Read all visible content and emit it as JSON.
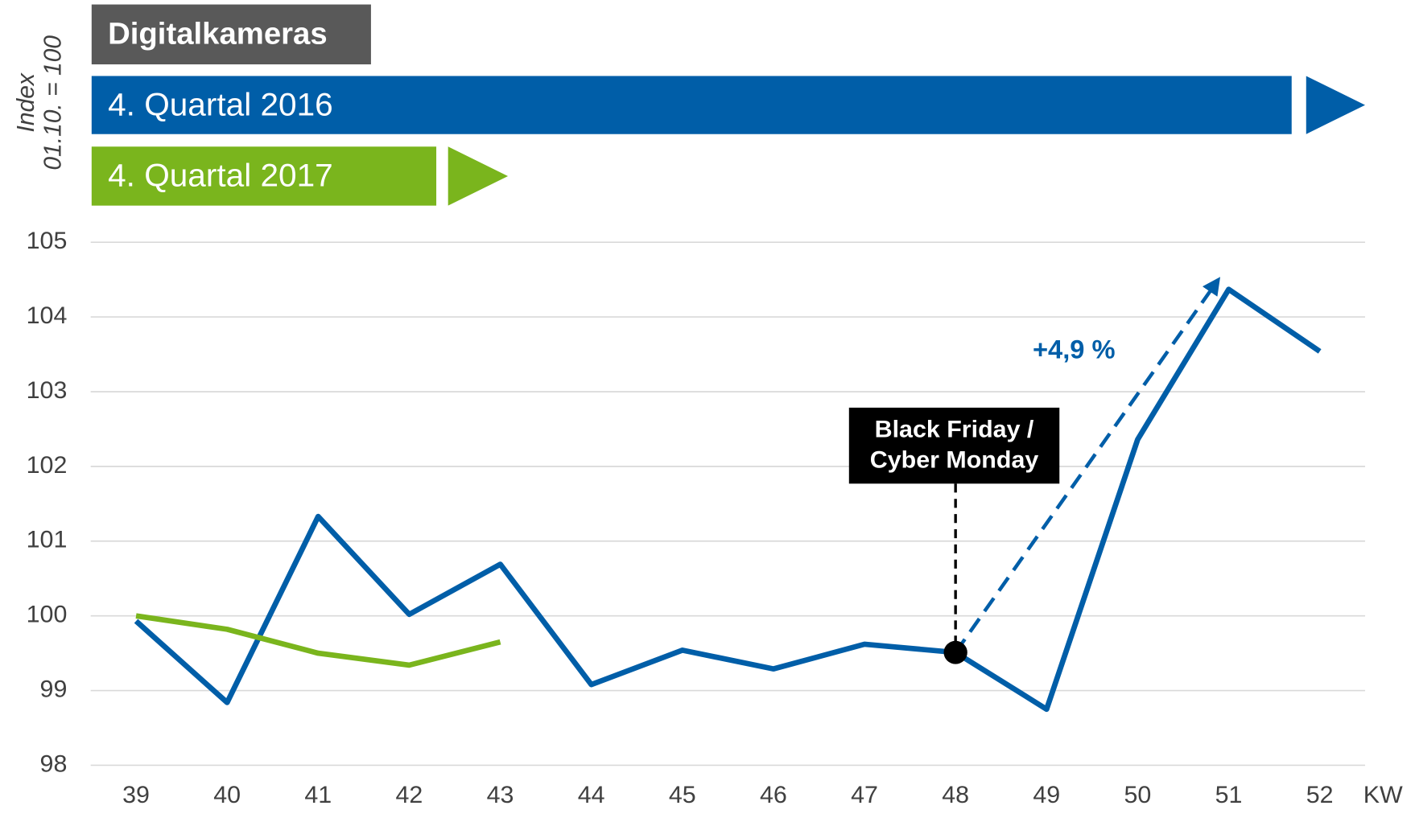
{
  "chart_data": {
    "type": "line",
    "y_label": [
      "Index",
      "01.10. = 100"
    ],
    "x_label": "KW",
    "title": "Digitalkameras",
    "categories": [
      "39",
      "40",
      "41",
      "42",
      "43",
      "44",
      "45",
      "46",
      "47",
      "48",
      "49",
      "50",
      "51",
      "52"
    ],
    "series": [
      {
        "name": "4. Quartal 2016",
        "color": "#005ea8",
        "values": [
          99.93,
          98.84,
          101.33,
          100.02,
          100.69,
          99.08,
          99.54,
          99.29,
          99.62,
          99.51,
          98.75,
          102.36,
          104.37,
          103.54
        ]
      },
      {
        "name": "4. Quartal 2017",
        "color": "#7ab51d",
        "values": [
          100,
          99.82,
          99.5,
          99.34,
          99.65,
          null,
          null,
          null,
          null,
          null,
          null,
          null,
          null,
          null
        ]
      }
    ],
    "ylim": [
      98,
      105
    ],
    "yticks": [
      98,
      99,
      100,
      101,
      102,
      103,
      104,
      105
    ],
    "grid": true,
    "annotations": [
      {
        "text": [
          "Black Friday /",
          "Cyber Monday"
        ]
      },
      {
        "text": "+4,9 %"
      }
    ]
  }
}
